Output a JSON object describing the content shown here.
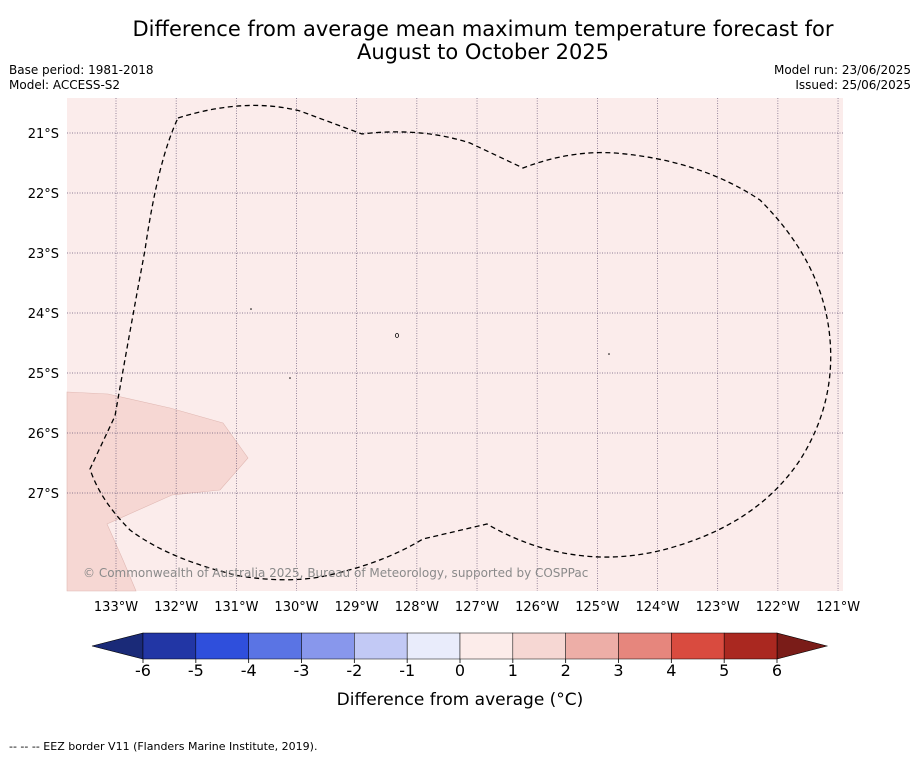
{
  "title_line1": "Difference from average mean maximum temperature forecast for",
  "title_line2": "August to October 2025",
  "base_period": "Base period: 1981-2018",
  "model": "Model: ACCESS-S2",
  "model_run": "Model run: 23/06/2025",
  "issued": "Issued: 25/06/2025",
  "copyright": "© Commonwealth of Australia 2025, Bureau of Meteorology, supported by COSPPac",
  "longitude_labels": [
    "133°W",
    "132°W",
    "131°W",
    "130°W",
    "129°W",
    "128°W",
    "127°W",
    "126°W",
    "125°W",
    "124°W",
    "123°W",
    "122°W",
    "121°W"
  ],
  "latitude_labels": [
    "21°S",
    "22°S",
    "23°S",
    "24°S",
    "25°S",
    "26°S",
    "27°S"
  ],
  "colorbar": {
    "label": "Difference from average (°C)",
    "ticks": [
      "-6",
      "-5",
      "-4",
      "-3",
      "-2",
      "-1",
      "0",
      "1",
      "2",
      "3",
      "4",
      "5",
      "6"
    ],
    "colors": [
      "#2236a5",
      "#2f4fdc",
      "#5a74e4",
      "#8897ec",
      "#c2c9f5",
      "#e9ecfb",
      "#fcecea",
      "#f6d7d3",
      "#edaea7",
      "#e6867d",
      "#d94b3f",
      "#aa2820"
    ],
    "under_color": "#1a2a78",
    "over_color": "#7a1c18"
  },
  "map_background_color": "#fbeceb",
  "map_patch_color": "#f6d7d3",
  "footnote": "--  --  -- EEZ border V11 (Flanders Marine Institute, 2019)."
}
